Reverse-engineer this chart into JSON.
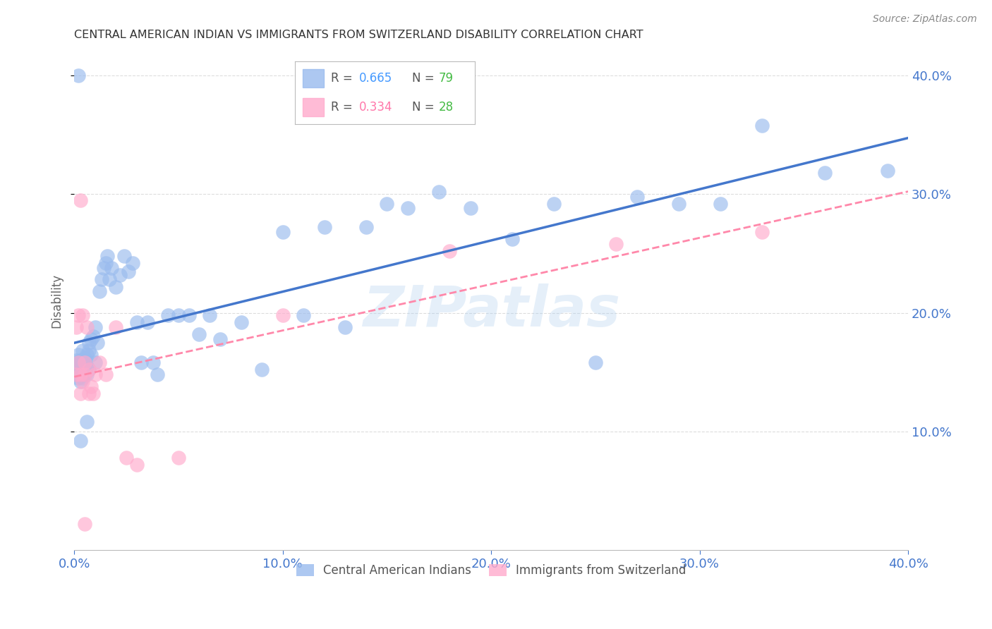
{
  "title": "CENTRAL AMERICAN INDIAN VS IMMIGRANTS FROM SWITZERLAND DISABILITY CORRELATION CHART",
  "source": "Source: ZipAtlas.com",
  "ylabel": "Disability",
  "watermark": "ZIPatlas",
  "legend1_r_label": "R = ",
  "legend1_r_val": "0.665",
  "legend1_n_label": "N = ",
  "legend1_n_val": "79",
  "legend2_r_label": "R = ",
  "legend2_r_val": "0.334",
  "legend2_n_label": "N = ",
  "legend2_n_val": "28",
  "blue_color": "#99BBEE",
  "pink_color": "#FFAACC",
  "blue_line_color": "#4477CC",
  "pink_line_color": "#FF88AA",
  "axis_label_color": "#4477CC",
  "title_color": "#333333",
  "r_color_blue": "#4499FF",
  "n_color_blue": "#44BB44",
  "r_color_pink": "#FF77AA",
  "n_color_pink": "#44BB44",
  "grid_color": "#DDDDDD",
  "xlim": [
    0.0,
    0.4
  ],
  "ylim": [
    0.0,
    0.42
  ],
  "yticks": [
    0.1,
    0.2,
    0.3,
    0.4
  ],
  "xticks": [
    0.0,
    0.1,
    0.2,
    0.3,
    0.4
  ],
  "blue_x": [
    0.001,
    0.001,
    0.001,
    0.002,
    0.002,
    0.002,
    0.002,
    0.003,
    0.003,
    0.003,
    0.003,
    0.003,
    0.004,
    0.004,
    0.004,
    0.004,
    0.005,
    0.005,
    0.005,
    0.005,
    0.006,
    0.006,
    0.006,
    0.007,
    0.007,
    0.007,
    0.008,
    0.008,
    0.009,
    0.01,
    0.01,
    0.011,
    0.012,
    0.013,
    0.014,
    0.015,
    0.016,
    0.017,
    0.018,
    0.02,
    0.022,
    0.024,
    0.026,
    0.028,
    0.03,
    0.032,
    0.035,
    0.038,
    0.04,
    0.045,
    0.05,
    0.055,
    0.06,
    0.065,
    0.07,
    0.08,
    0.09,
    0.1,
    0.11,
    0.12,
    0.13,
    0.14,
    0.15,
    0.16,
    0.175,
    0.19,
    0.21,
    0.23,
    0.25,
    0.27,
    0.29,
    0.31,
    0.33,
    0.36,
    0.39,
    0.002,
    0.003,
    0.004,
    0.006
  ],
  "blue_y": [
    0.155,
    0.148,
    0.16,
    0.15,
    0.158,
    0.145,
    0.165,
    0.155,
    0.148,
    0.142,
    0.16,
    0.152,
    0.155,
    0.15,
    0.145,
    0.168,
    0.155,
    0.162,
    0.148,
    0.158,
    0.165,
    0.155,
    0.148,
    0.168,
    0.175,
    0.152,
    0.178,
    0.165,
    0.18,
    0.188,
    0.158,
    0.175,
    0.218,
    0.228,
    0.238,
    0.242,
    0.248,
    0.228,
    0.238,
    0.222,
    0.232,
    0.248,
    0.235,
    0.242,
    0.192,
    0.158,
    0.192,
    0.158,
    0.148,
    0.198,
    0.198,
    0.198,
    0.182,
    0.198,
    0.178,
    0.192,
    0.152,
    0.268,
    0.198,
    0.272,
    0.188,
    0.272,
    0.292,
    0.288,
    0.302,
    0.288,
    0.262,
    0.292,
    0.158,
    0.298,
    0.292,
    0.292,
    0.358,
    0.318,
    0.32,
    0.4,
    0.092,
    0.148,
    0.108
  ],
  "pink_x": [
    0.001,
    0.001,
    0.002,
    0.002,
    0.003,
    0.003,
    0.004,
    0.004,
    0.005,
    0.005,
    0.006,
    0.007,
    0.007,
    0.008,
    0.009,
    0.01,
    0.012,
    0.015,
    0.02,
    0.025,
    0.03,
    0.05,
    0.1,
    0.18,
    0.26,
    0.33,
    0.003,
    0.005
  ],
  "pink_y": [
    0.148,
    0.188,
    0.158,
    0.198,
    0.148,
    0.132,
    0.142,
    0.198,
    0.158,
    0.148,
    0.188,
    0.152,
    0.132,
    0.138,
    0.132,
    0.148,
    0.158,
    0.148,
    0.188,
    0.078,
    0.072,
    0.078,
    0.198,
    0.252,
    0.258,
    0.268,
    0.295,
    0.022
  ]
}
